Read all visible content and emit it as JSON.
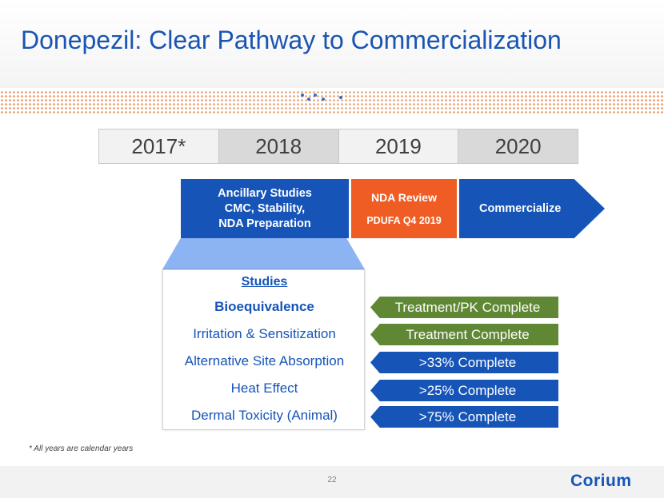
{
  "title": "Donepezil: Clear Pathway to Commercialization",
  "timeline": {
    "years": [
      "2017*",
      "2018",
      "2019",
      "2020"
    ]
  },
  "phases": {
    "ancillary": {
      "line1": "Ancillary Studies",
      "line2": "CMC, Stability,",
      "line3": "NDA Preparation"
    },
    "nda": {
      "label": "NDA Review",
      "sub": "PDUFA Q4 2019"
    },
    "commercialize": {
      "label": "Commercialize"
    }
  },
  "studies": {
    "heading": "Studies",
    "items": [
      {
        "name": "Bioequivalence",
        "status": "Treatment/PK Complete",
        "status_color": "#5f8734"
      },
      {
        "name": "Irritation & Sensitization",
        "status": "Treatment Complete",
        "status_color": "#5f8734"
      },
      {
        "name": "Alternative Site Absorption",
        "status": ">33% Complete",
        "status_color": "#1654b8"
      },
      {
        "name": "Heat Effect",
        "status": ">25% Complete",
        "status_color": "#1654b8"
      },
      {
        "name": "Dermal Toxicity (Animal)",
        "status": ">75% Complete",
        "status_color": "#1654b8"
      }
    ]
  },
  "footnote": "*  All years are calendar years",
  "page_number": "22",
  "logo_text": "Corium",
  "colors": {
    "brand_blue": "#1654b8",
    "orange": "#ef5d24",
    "green": "#5f8734",
    "funnel_blue": "#8db4f2"
  }
}
